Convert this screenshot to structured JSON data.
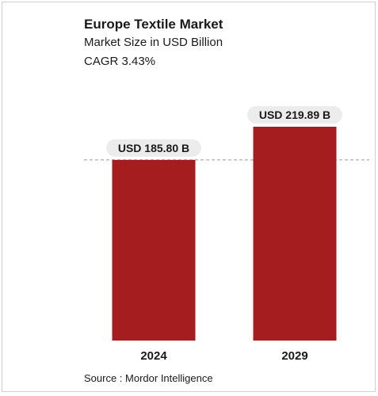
{
  "header": {
    "title": "Europe Textile Market",
    "subtitle": "Market Size in USD Billion",
    "cagr": "CAGR 3.43%"
  },
  "footer": {
    "source": "Source : Mordor Intelligence"
  },
  "colors": {
    "bar": "#a51d1f",
    "label_bg": "#ececec",
    "dashed_line": "#9a9a9a"
  },
  "chart_data": {
    "type": "bar",
    "categories": [
      "2024",
      "2029"
    ],
    "values": [
      185.8,
      219.89
    ],
    "value_labels": [
      "USD 185.80 B",
      "USD 219.89 B"
    ],
    "title": "Europe Textile Market",
    "subtitle": "Market Size in USD Billion",
    "xlabel": "",
    "ylabel": "",
    "ylim": [
      0,
      219.89
    ],
    "grid": false,
    "reference_line_value": 185.8
  }
}
